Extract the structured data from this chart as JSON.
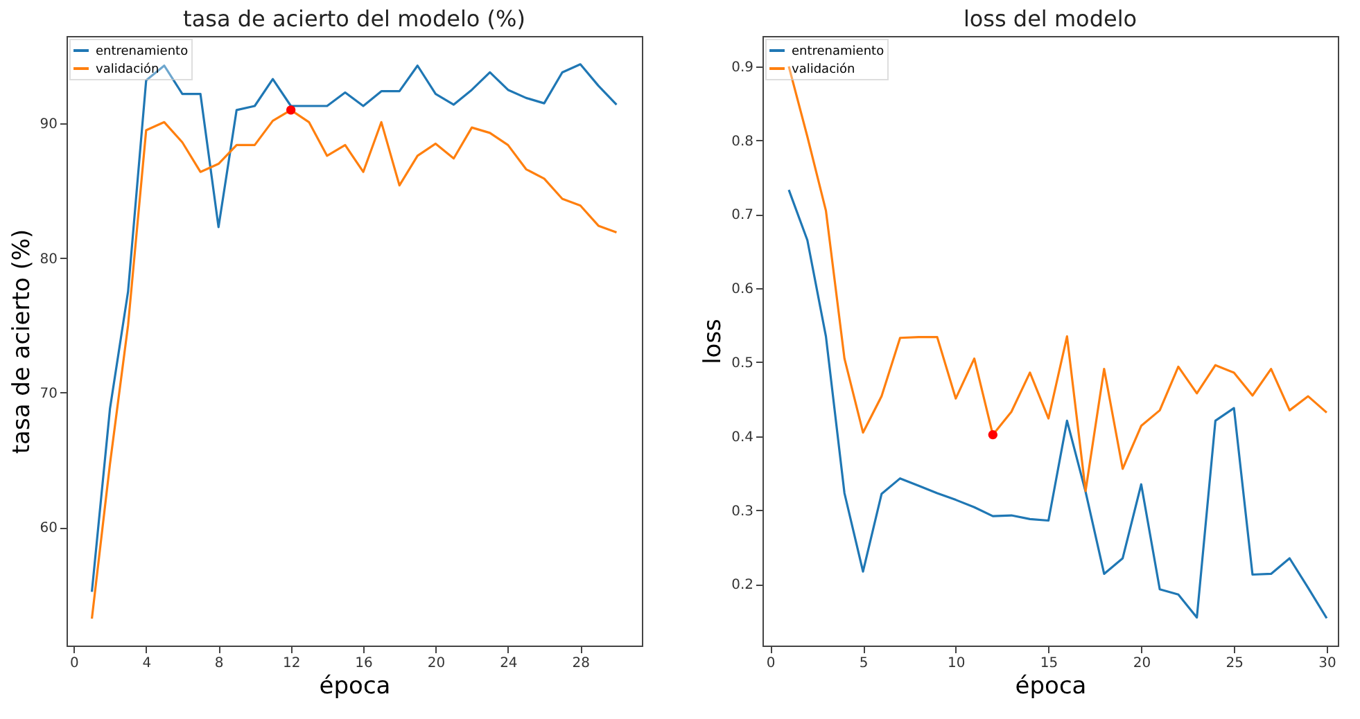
{
  "chart_data": [
    {
      "type": "line",
      "title": "tasa de acierto del modelo (%)",
      "xlabel": "época",
      "ylabel": "tasa de acierto (%)",
      "xlim": [
        -0.4,
        31.4
      ],
      "xticks": [
        0,
        4,
        8,
        12,
        16,
        20,
        24,
        28
      ],
      "ylim": [
        51.2,
        96.5
      ],
      "yticks": [
        60,
        70,
        80,
        90
      ],
      "grid": false,
      "legend": "top left",
      "x": [
        1,
        2,
        3,
        4,
        5,
        6,
        7,
        8,
        9,
        10,
        11,
        12,
        13,
        14,
        15,
        16,
        17,
        18,
        19,
        20,
        21,
        22,
        23,
        24,
        25,
        26,
        27,
        28,
        29,
        30
      ],
      "series": [
        {
          "name": "entrenamiento",
          "color": "#1f77b4",
          "values": [
            55.2,
            68.8,
            77.5,
            93.2,
            94.3,
            92.2,
            92.2,
            82.3,
            91.0,
            91.3,
            93.3,
            91.3,
            91.3,
            91.3,
            92.3,
            91.3,
            92.4,
            92.4,
            94.3,
            92.2,
            91.4,
            92.5,
            93.8,
            92.5,
            91.9,
            91.5,
            93.8,
            94.4,
            92.8,
            91.4
          ]
        },
        {
          "name": "validación",
          "color": "#ff7f0e",
          "values": [
            53.2,
            64.7,
            75.0,
            89.5,
            90.1,
            88.6,
            86.4,
            87.0,
            88.4,
            88.4,
            90.2,
            91.0,
            90.1,
            87.6,
            88.4,
            86.4,
            90.1,
            85.4,
            87.6,
            88.5,
            87.4,
            89.7,
            89.3,
            88.4,
            86.6,
            85.9,
            84.4,
            83.9,
            82.4,
            81.9
          ]
        },
        {
          "type": "scatter",
          "color": "#ff0000",
          "x": [
            12
          ],
          "values": [
            91.0
          ],
          "marker": "circle"
        }
      ]
    },
    {
      "type": "line",
      "title": "loss del modelo",
      "xlabel": "época",
      "ylabel": "loss",
      "xlim": [
        -0.42,
        30.6
      ],
      "xticks": [
        0,
        5,
        10,
        15,
        20,
        25,
        30
      ],
      "ylim": [
        0.117,
        0.941
      ],
      "yticks": [
        0.2,
        0.3,
        0.4,
        0.5,
        0.6,
        0.7,
        0.8,
        0.9
      ],
      "grid": false,
      "legend": "top left",
      "x": [
        1,
        2,
        3,
        4,
        5,
        6,
        7,
        8,
        9,
        10,
        11,
        12,
        13,
        14,
        15,
        16,
        17,
        18,
        19,
        20,
        21,
        22,
        23,
        24,
        25,
        26,
        27,
        28,
        29,
        30
      ],
      "series": [
        {
          "name": "entrenamiento",
          "color": "#1f77b4",
          "values": [
            0.733,
            0.665,
            0.535,
            0.323,
            0.217,
            0.322,
            0.343,
            0.333,
            0.323,
            0.314,
            0.304,
            0.292,
            0.293,
            0.288,
            0.286,
            0.421,
            0.325,
            0.214,
            0.235,
            0.335,
            0.193,
            0.186,
            0.155,
            0.421,
            0.438,
            0.213,
            0.214,
            0.235,
            0.195,
            0.154
          ]
        },
        {
          "name": "validación",
          "color": "#ff7f0e",
          "values": [
            0.9,
            0.805,
            0.705,
            0.505,
            0.405,
            0.454,
            0.533,
            0.534,
            0.534,
            0.451,
            0.505,
            0.402,
            0.433,
            0.486,
            0.424,
            0.535,
            0.326,
            0.491,
            0.356,
            0.414,
            0.435,
            0.494,
            0.458,
            0.496,
            0.486,
            0.455,
            0.491,
            0.435,
            0.454,
            0.432
          ]
        },
        {
          "type": "scatter",
          "color": "#ff0000",
          "x": [
            12
          ],
          "values": [
            0.402
          ],
          "marker": "circle"
        }
      ]
    }
  ]
}
